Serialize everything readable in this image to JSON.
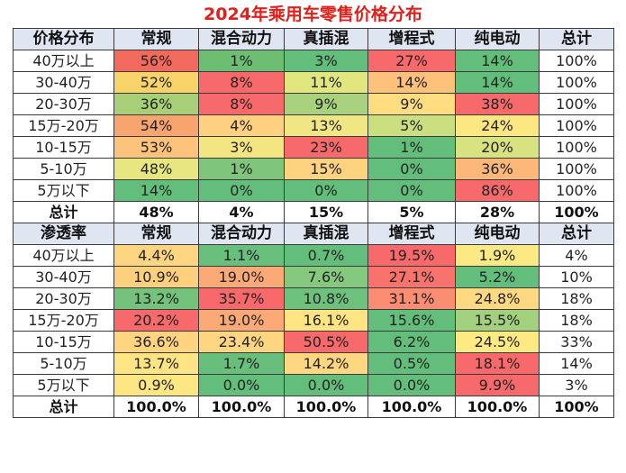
{
  "title": "2024年乘用车零售价格分布",
  "columns": [
    "常规",
    "混合动力",
    "真插混",
    "增程式",
    "纯电动",
    "总计"
  ],
  "tables": [
    {
      "header_label": "价格分布",
      "rows": [
        {
          "label": "40万以上",
          "cells": [
            {
              "v": "56%",
              "c": "#f2695e"
            },
            {
              "v": "1%",
              "c": "#6dbd73"
            },
            {
              "v": "3%",
              "c": "#63be7b"
            },
            {
              "v": "27%",
              "c": "#f8696b"
            },
            {
              "v": "14%",
              "c": "#63be7b"
            },
            {
              "v": "100%",
              "c": ""
            }
          ]
        },
        {
          "label": "30-40万",
          "cells": [
            {
              "v": "52%",
              "c": "#f7d36a"
            },
            {
              "v": "8%",
              "c": "#f8696b"
            },
            {
              "v": "11%",
              "c": "#e2e67f"
            },
            {
              "v": "14%",
              "c": "#fdc17c"
            },
            {
              "v": "14%",
              "c": "#63be7b"
            },
            {
              "v": "100%",
              "c": ""
            }
          ]
        },
        {
          "label": "20-30万",
          "cells": [
            {
              "v": "36%",
              "c": "#a8cf78"
            },
            {
              "v": "8%",
              "c": "#f8696b"
            },
            {
              "v": "9%",
              "c": "#a9d27f"
            },
            {
              "v": "9%",
              "c": "#fedd80"
            },
            {
              "v": "38%",
              "c": "#f8696b"
            },
            {
              "v": "100%",
              "c": ""
            }
          ]
        },
        {
          "label": "15万-20万",
          "cells": [
            {
              "v": "54%",
              "c": "#f8a46f"
            },
            {
              "v": "4%",
              "c": "#fed07f"
            },
            {
              "v": "13%",
              "c": "#f0e784"
            },
            {
              "v": "5%",
              "c": "#c9df80"
            },
            {
              "v": "24%",
              "c": "#fde783"
            },
            {
              "v": "100%",
              "c": ""
            }
          ]
        },
        {
          "label": "10-15万",
          "cells": [
            {
              "v": "53%",
              "c": "#fbc37b"
            },
            {
              "v": "3%",
              "c": "#f4e583"
            },
            {
              "v": "23%",
              "c": "#f8696b"
            },
            {
              "v": "1%",
              "c": "#63be7b"
            },
            {
              "v": "20%",
              "c": "#d7e381"
            },
            {
              "v": "100%",
              "c": ""
            }
          ]
        },
        {
          "label": "5-10万",
          "cells": [
            {
              "v": "48%",
              "c": "#e7e680"
            },
            {
              "v": "1%",
              "c": "#80c57c"
            },
            {
              "v": "15%",
              "c": "#fdd380"
            },
            {
              "v": "0%",
              "c": "#63be7b"
            },
            {
              "v": "36%",
              "c": "#fcb779"
            },
            {
              "v": "100%",
              "c": ""
            }
          ]
        },
        {
          "label": "5万以下",
          "cells": [
            {
              "v": "14%",
              "c": "#63be7b"
            },
            {
              "v": "0%",
              "c": "#63be7b"
            },
            {
              "v": "0%",
              "c": "#63be7b"
            },
            {
              "v": "0%",
              "c": "#63be7b"
            },
            {
              "v": "86%",
              "c": "#f8696b"
            },
            {
              "v": "100%",
              "c": ""
            }
          ]
        }
      ],
      "total": {
        "label": "总计",
        "cells": [
          "48%",
          "4%",
          "15%",
          "5%",
          "28%",
          "100%"
        ]
      }
    },
    {
      "header_label": "渗透率",
      "rows": [
        {
          "label": "40万以上",
          "cells": [
            {
              "v": "4.4%",
              "c": "#fed580"
            },
            {
              "v": "1.1%",
              "c": "#68c07c"
            },
            {
              "v": "0.7%",
              "c": "#63be7b"
            },
            {
              "v": "19.5%",
              "c": "#f8696b"
            },
            {
              "v": "1.9%",
              "c": "#fbea84"
            },
            {
              "v": "4%",
              "c": ""
            }
          ]
        },
        {
          "label": "30-40万",
          "cells": [
            {
              "v": "10.9%",
              "c": "#fdd07e"
            },
            {
              "v": "19.0%",
              "c": "#fba977"
            },
            {
              "v": "7.6%",
              "c": "#84c97d"
            },
            {
              "v": "27.1%",
              "c": "#f9736c"
            },
            {
              "v": "5.2%",
              "c": "#63be7b"
            },
            {
              "v": "10%",
              "c": ""
            }
          ]
        },
        {
          "label": "20-30万",
          "cells": [
            {
              "v": "13.2%",
              "c": "#74c27b"
            },
            {
              "v": "35.7%",
              "c": "#f8696b"
            },
            {
              "v": "10.8%",
              "c": "#6ec17c"
            },
            {
              "v": "31.1%",
              "c": "#fb8d72"
            },
            {
              "v": "24.8%",
              "c": "#fed981"
            },
            {
              "v": "18%",
              "c": ""
            }
          ]
        },
        {
          "label": "15万-20万",
          "cells": [
            {
              "v": "20.2%",
              "c": "#f8696b"
            },
            {
              "v": "19.0%",
              "c": "#fba977"
            },
            {
              "v": "16.1%",
              "c": "#fee482"
            },
            {
              "v": "15.6%",
              "c": "#63be7b"
            },
            {
              "v": "15.5%",
              "c": "#a2d07f"
            },
            {
              "v": "18%",
              "c": ""
            }
          ]
        },
        {
          "label": "10-15万",
          "cells": [
            {
              "v": "36.6%",
              "c": "#fed480"
            },
            {
              "v": "23.4%",
              "c": "#fed580"
            },
            {
              "v": "50.5%",
              "c": "#f8696b"
            },
            {
              "v": "6.2%",
              "c": "#63be7b"
            },
            {
              "v": "24.5%",
              "c": "#fee983"
            },
            {
              "v": "33%",
              "c": ""
            }
          ]
        },
        {
          "label": "5-10万",
          "cells": [
            {
              "v": "13.7%",
              "c": "#fee483"
            },
            {
              "v": "1.7%",
              "c": "#67bf7b"
            },
            {
              "v": "14.2%",
              "c": "#fed780"
            },
            {
              "v": "0.5%",
              "c": "#63be7b"
            },
            {
              "v": "18.1%",
              "c": "#f8696b"
            },
            {
              "v": "14%",
              "c": ""
            }
          ]
        },
        {
          "label": "5万以下",
          "cells": [
            {
              "v": "0.9%",
              "c": "#fee683"
            },
            {
              "v": "0.0%",
              "c": "#63be7b"
            },
            {
              "v": "0.0%",
              "c": "#63be7b"
            },
            {
              "v": "0.0%",
              "c": "#63be7b"
            },
            {
              "v": "9.9%",
              "c": "#f8696b"
            },
            {
              "v": "3%",
              "c": ""
            }
          ]
        }
      ],
      "total": {
        "label": "总计",
        "cells": [
          "100.0%",
          "100.0%",
          "100.0%",
          "100.0%",
          "100.0%",
          "100%"
        ]
      }
    }
  ]
}
